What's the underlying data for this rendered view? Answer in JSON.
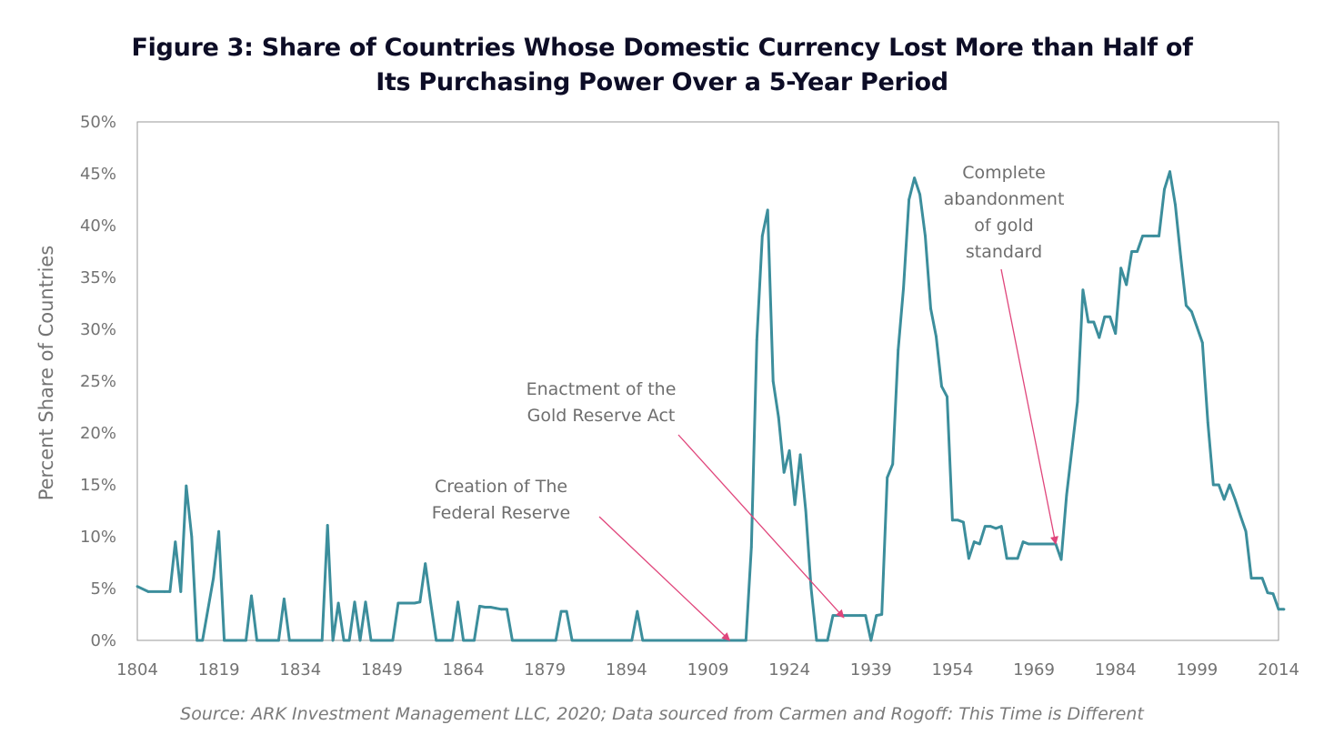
{
  "chart_data": {
    "type": "line",
    "title_lines": [
      "Figure 3: Share of Countries Whose Domestic Currency Lost More than Half of",
      "Its Purchasing Power Over a 5-Year Period"
    ],
    "ylabel": "Percent Share of Countries",
    "xlabel": "",
    "source": "Source: ARK Investment Management LLC, 2020; Data sourced from Carmen and Rogoff: This Time is Different",
    "xlim": [
      1804,
      2014
    ],
    "ylim": [
      0,
      50
    ],
    "x_ticks": [
      "1804",
      "1819",
      "1834",
      "1849",
      "1864",
      "1879",
      "1894",
      "1909",
      "1924",
      "1939",
      "1954",
      "1969",
      "1984",
      "1999",
      "2014"
    ],
    "x_tick_values": [
      1804,
      1819,
      1834,
      1849,
      1864,
      1879,
      1894,
      1909,
      1924,
      1939,
      1954,
      1969,
      1984,
      1999,
      2014
    ],
    "y_ticks": [
      "0%",
      "5%",
      "10%",
      "15%",
      "20%",
      "25%",
      "30%",
      "35%",
      "40%",
      "45%",
      "50%"
    ],
    "y_tick_values": [
      0,
      5,
      10,
      15,
      20,
      25,
      30,
      35,
      40,
      45,
      50
    ],
    "line_color": "#3c8e9c",
    "arrow_color": "#e0457b",
    "series": [
      {
        "name": "Share of countries",
        "points": [
          [
            1804,
            5.2
          ],
          [
            1806,
            4.7
          ],
          [
            1809,
            4.7
          ],
          [
            1810,
            4.7
          ],
          [
            1811,
            9.5
          ],
          [
            1812,
            4.7
          ],
          [
            1813,
            14.9
          ],
          [
            1814,
            10
          ],
          [
            1815,
            0
          ],
          [
            1816,
            0
          ],
          [
            1818,
            6
          ],
          [
            1819,
            10.5
          ],
          [
            1820,
            0
          ],
          [
            1824,
            0
          ],
          [
            1825,
            4.3
          ],
          [
            1826,
            0
          ],
          [
            1830,
            0
          ],
          [
            1831,
            4
          ],
          [
            1832,
            0
          ],
          [
            1838,
            0
          ],
          [
            1839,
            11.1
          ],
          [
            1840,
            0
          ],
          [
            1841,
            3.6
          ],
          [
            1842,
            0
          ],
          [
            1843,
            0
          ],
          [
            1844,
            3.7
          ],
          [
            1845,
            0
          ],
          [
            1846,
            3.7
          ],
          [
            1847,
            0
          ],
          [
            1851,
            0
          ],
          [
            1852,
            3.6
          ],
          [
            1855,
            3.6
          ],
          [
            1856,
            3.7
          ],
          [
            1857,
            7.4
          ],
          [
            1858,
            3.6
          ],
          [
            1859,
            0
          ],
          [
            1862,
            0
          ],
          [
            1863,
            3.7
          ],
          [
            1864,
            0
          ],
          [
            1866,
            0
          ],
          [
            1867,
            3.3
          ],
          [
            1868,
            3.2
          ],
          [
            1869,
            3.2
          ],
          [
            1870,
            3.1
          ],
          [
            1871,
            3
          ],
          [
            1872,
            3
          ],
          [
            1873,
            0
          ],
          [
            1881,
            0
          ],
          [
            1882,
            2.8
          ],
          [
            1883,
            2.8
          ],
          [
            1884,
            0
          ],
          [
            1895,
            0
          ],
          [
            1896,
            2.8
          ],
          [
            1897,
            0
          ],
          [
            1915,
            0
          ],
          [
            1916,
            0
          ],
          [
            1917,
            9
          ],
          [
            1918,
            29
          ],
          [
            1919,
            39
          ],
          [
            1920,
            41.5
          ],
          [
            1921,
            25
          ],
          [
            1922,
            21.5
          ],
          [
            1923,
            16.2
          ],
          [
            1924,
            18.3
          ],
          [
            1925,
            13.1
          ],
          [
            1926,
            17.9
          ],
          [
            1927,
            12.5
          ],
          [
            1928,
            5
          ],
          [
            1929,
            0
          ],
          [
            1931,
            0
          ],
          [
            1932,
            2.4
          ],
          [
            1937,
            2.4
          ],
          [
            1938,
            2.4
          ],
          [
            1939,
            0
          ],
          [
            1940,
            2.4
          ],
          [
            1941,
            2.5
          ],
          [
            1942,
            15.7
          ],
          [
            1943,
            17
          ],
          [
            1944,
            28
          ],
          [
            1945,
            34
          ],
          [
            1946,
            42.5
          ],
          [
            1947,
            44.6
          ],
          [
            1948,
            43
          ],
          [
            1949,
            39
          ],
          [
            1950,
            32
          ],
          [
            1951,
            29.3
          ],
          [
            1952,
            24.5
          ],
          [
            1953,
            23.5
          ],
          [
            1954,
            11.6
          ],
          [
            1955,
            11.6
          ],
          [
            1956,
            11.4
          ],
          [
            1957,
            7.9
          ],
          [
            1958,
            9.5
          ],
          [
            1959,
            9.3
          ],
          [
            1960,
            11
          ],
          [
            1961,
            11
          ],
          [
            1962,
            10.8
          ],
          [
            1963,
            11
          ],
          [
            1964,
            7.9
          ],
          [
            1965,
            7.9
          ],
          [
            1966,
            7.9
          ],
          [
            1967,
            9.5
          ],
          [
            1968,
            9.3
          ],
          [
            1969,
            9.3
          ],
          [
            1972,
            9.3
          ],
          [
            1973,
            9.3
          ],
          [
            1974,
            7.8
          ],
          [
            1975,
            14
          ],
          [
            1976,
            18.5
          ],
          [
            1977,
            23
          ],
          [
            1978,
            33.8
          ],
          [
            1979,
            30.7
          ],
          [
            1980,
            30.7
          ],
          [
            1981,
            29.2
          ],
          [
            1982,
            31.2
          ],
          [
            1983,
            31.2
          ],
          [
            1984,
            29.6
          ],
          [
            1985,
            35.9
          ],
          [
            1986,
            34.3
          ],
          [
            1987,
            37.5
          ],
          [
            1988,
            37.5
          ],
          [
            1989,
            39
          ],
          [
            1990,
            39
          ],
          [
            1991,
            39
          ],
          [
            1992,
            39
          ],
          [
            1993,
            43.5
          ],
          [
            1994,
            45.2
          ],
          [
            1995,
            42
          ],
          [
            1996,
            37
          ],
          [
            1997,
            32.3
          ],
          [
            1998,
            31.7
          ],
          [
            1999,
            30.2
          ],
          [
            2000,
            28.7
          ],
          [
            2001,
            21
          ],
          [
            2002,
            15
          ],
          [
            2003,
            15
          ],
          [
            2004,
            13.6
          ],
          [
            2005,
            15
          ],
          [
            2006,
            13.6
          ],
          [
            2007,
            12
          ],
          [
            2008,
            10.5
          ],
          [
            2009,
            6
          ],
          [
            2010,
            6
          ],
          [
            2011,
            6
          ],
          [
            2012,
            4.6
          ],
          [
            2013,
            4.5
          ],
          [
            2014,
            3
          ],
          [
            2015,
            3
          ]
        ]
      }
    ],
    "annotations": [
      {
        "lines": [
          "Creation of The",
          "Federal Reserve"
        ],
        "arrow_target": [
          1913,
          0
        ]
      },
      {
        "lines": [
          "Enactment of the",
          "Gold Reserve Act"
        ],
        "arrow_target": [
          1934,
          2.2
        ]
      },
      {
        "lines": [
          "Complete",
          "abandonment",
          "of gold",
          "standard"
        ],
        "arrow_target": [
          1973,
          9.3
        ]
      }
    ]
  }
}
